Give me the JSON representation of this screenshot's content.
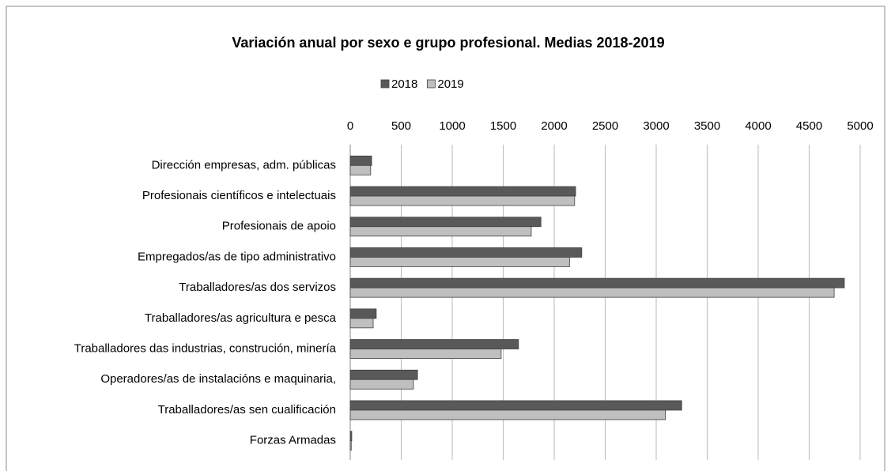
{
  "chart_data": {
    "type": "barh",
    "title": "Variación anual por sexo e grupo profesional. Medias 2018-2019",
    "categories": [
      "Dirección empresas, adm. públicas",
      "Profesionais científicos e intelectuais",
      "Profesionais de apoio",
      "Empregados/as de tipo administrativo",
      "Traballadores/as dos servizos",
      "Traballadores/as agricultura e pesca",
      "Traballadores das industrias, construción, minería",
      "Operadores/as de instalacións e maquinaria,",
      "Traballadores/as sen cualificación",
      "Forzas Armadas"
    ],
    "series": [
      {
        "name": "2018",
        "color": "#595959",
        "values": [
          210,
          2210,
          1870,
          2270,
          4845,
          255,
          1650,
          660,
          3250,
          15
        ]
      },
      {
        "name": "2019",
        "color": "#bfbfbf",
        "values": [
          200,
          2200,
          1775,
          2150,
          4745,
          225,
          1480,
          620,
          3090,
          10
        ]
      }
    ],
    "xlim": [
      0,
      5000
    ],
    "xticks": [
      0,
      500,
      1000,
      1500,
      2000,
      2500,
      3000,
      3500,
      4000,
      4500,
      5000
    ],
    "grid": true,
    "legend": "top"
  }
}
